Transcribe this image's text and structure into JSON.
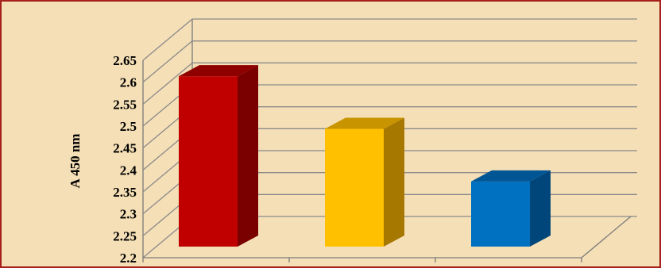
{
  "chart_data": {
    "type": "bar",
    "style": "3d-column",
    "title": "",
    "xlabel": "",
    "ylabel": "A 450 nm",
    "ylim": [
      2.2,
      2.65
    ],
    "yticks": [
      "2.2",
      "2.25",
      "2.3",
      "2.35",
      "2.4",
      "2.45",
      "2.5",
      "2.55",
      "2.6",
      "2.65"
    ],
    "grid": true,
    "legend": "none",
    "categories": [
      "",
      "",
      ""
    ],
    "values": [
      2.61,
      2.49,
      2.37
    ],
    "colors": [
      "#c00000",
      "#ffc000",
      "#0070c0"
    ],
    "side_colors": [
      "#7a0000",
      "#a77800",
      "#00467a"
    ],
    "top_colors": [
      "#8e0000",
      "#c89400",
      "#005595"
    ]
  },
  "frame": {
    "background": "#f5dfb6",
    "border": "#a8201c"
  }
}
